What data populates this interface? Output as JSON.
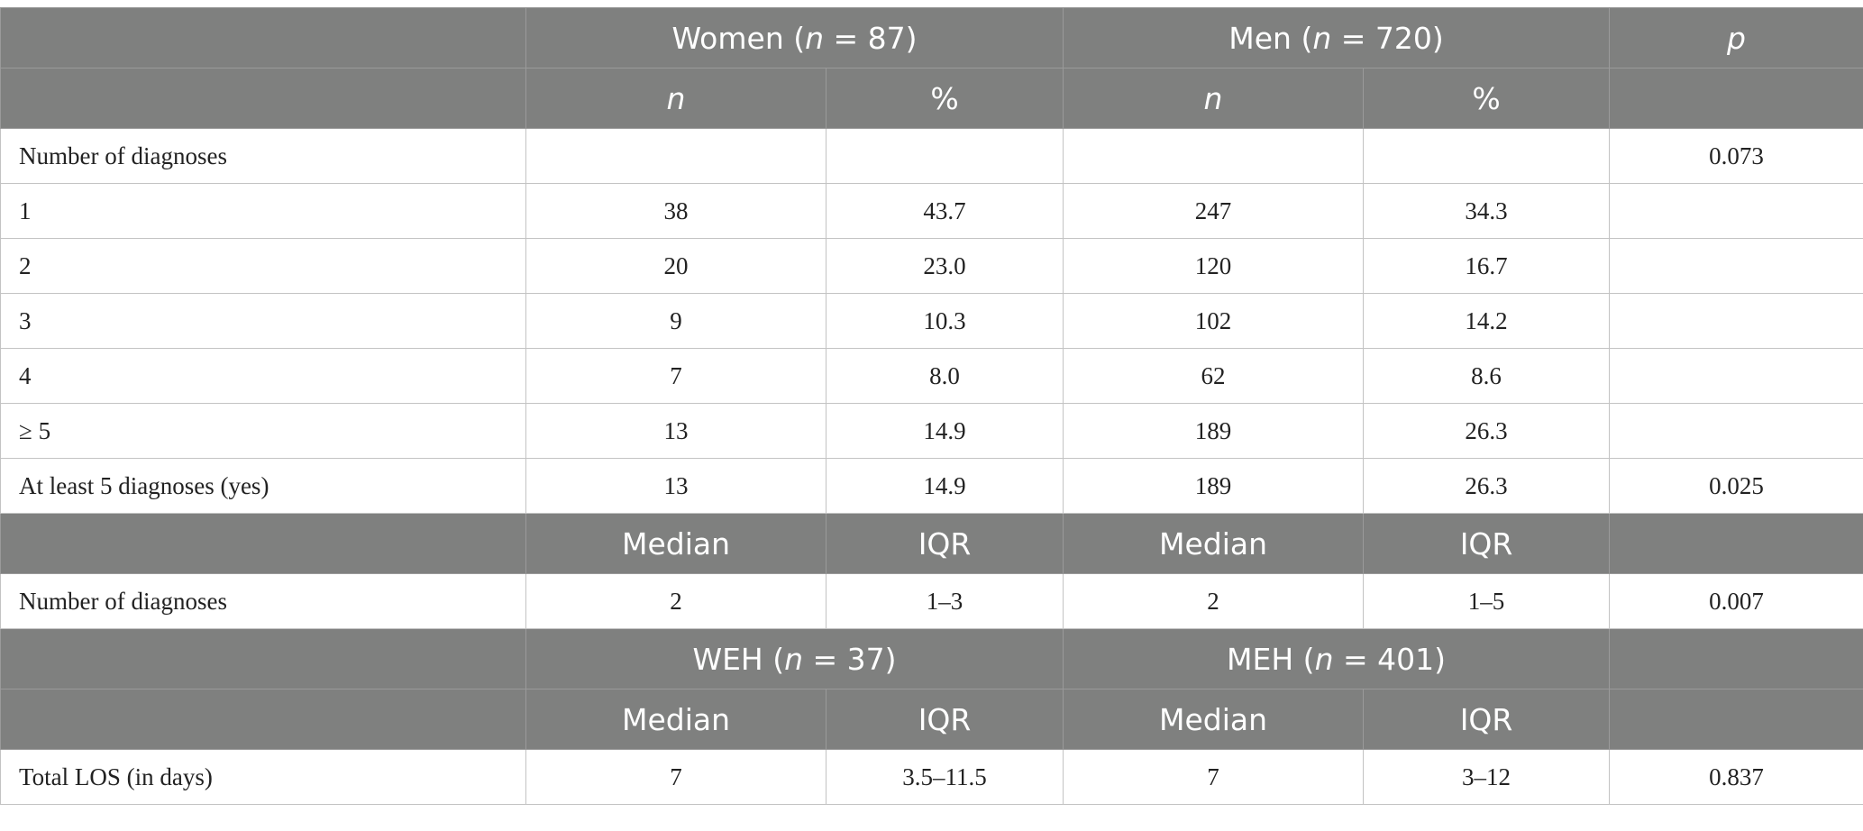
{
  "header": {
    "women_prefix": "Women (",
    "women_n_var": "n",
    "women_suffix": " = 87)",
    "men_prefix": "Men (",
    "men_n_var": "n",
    "men_suffix": " = 720)",
    "p_label": "p",
    "sub_n": "n",
    "sub_pct": "%"
  },
  "diag_rows": [
    {
      "label": "Number of diagnoses",
      "w_n": "",
      "w_pct": "",
      "m_n": "",
      "m_pct": "",
      "p": "0.073"
    },
    {
      "label": "1",
      "w_n": "38",
      "w_pct": "43.7",
      "m_n": "247",
      "m_pct": "34.3",
      "p": ""
    },
    {
      "label": "2",
      "w_n": "20",
      "w_pct": "23.0",
      "m_n": "120",
      "m_pct": "16.7",
      "p": ""
    },
    {
      "label": "3",
      "w_n": "9",
      "w_pct": "10.3",
      "m_n": "102",
      "m_pct": "14.2",
      "p": ""
    },
    {
      "label": "4",
      "w_n": "7",
      "w_pct": "8.0",
      "m_n": "62",
      "m_pct": "8.6",
      "p": ""
    },
    {
      "label": "≥ 5",
      "w_n": "13",
      "w_pct": "14.9",
      "m_n": "189",
      "m_pct": "26.3",
      "p": ""
    },
    {
      "label": "At least 5 diagnoses (yes)",
      "w_n": "13",
      "w_pct": "14.9",
      "m_n": "189",
      "m_pct": "26.3",
      "p": "0.025"
    }
  ],
  "median_header": {
    "median": "Median",
    "iqr": "IQR"
  },
  "median_row": {
    "label": "Number of diagnoses",
    "w_median": "2",
    "w_iqr": "1–3",
    "m_median": "2",
    "m_iqr": "1–5",
    "p": "0.007"
  },
  "los_header": {
    "weh_prefix": "WEH (",
    "weh_n_var": "n",
    "weh_suffix": " = 37)",
    "meh_prefix": "MEH (",
    "meh_n_var": "n",
    "meh_suffix": " = 401)",
    "median": "Median",
    "iqr": "IQR"
  },
  "los_row": {
    "label": "Total LOS (in days)",
    "weh_median": "7",
    "weh_iqr": "3.5–11.5",
    "meh_median": "7",
    "meh_iqr": "3–12",
    "p": "0.837"
  }
}
